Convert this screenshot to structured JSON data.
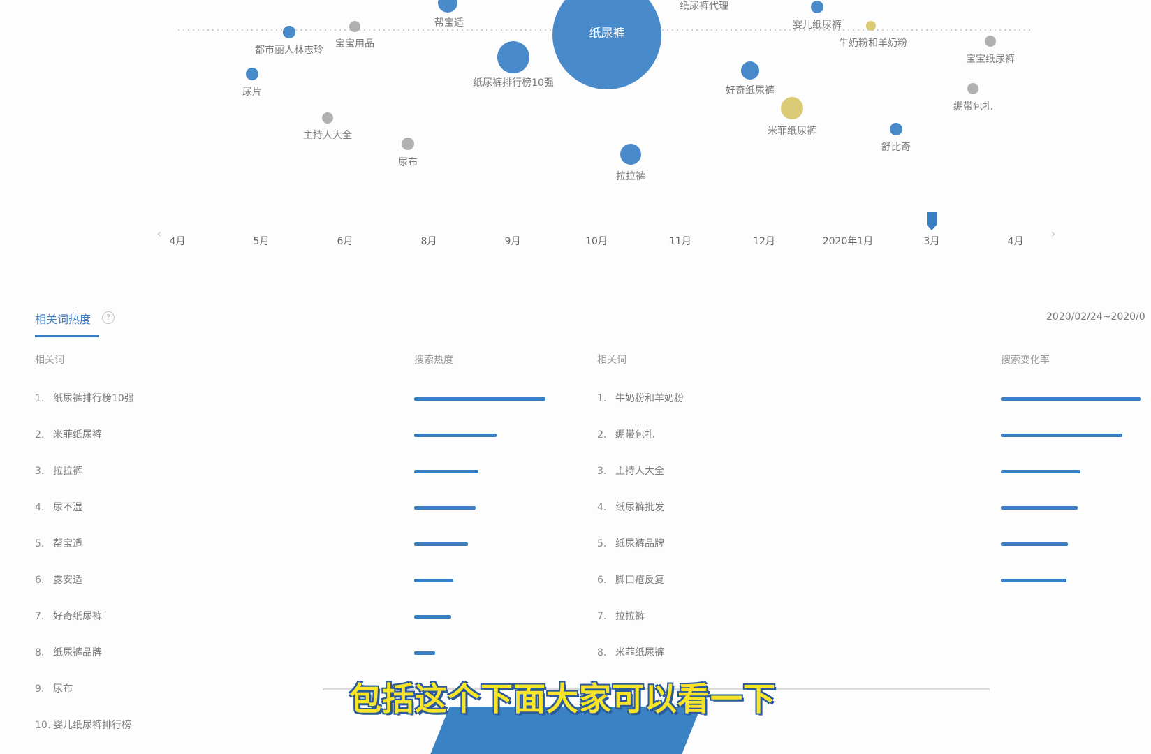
{
  "chart_data": {
    "type": "scatter",
    "x_ticks": [
      "4月",
      "5月",
      "6月",
      "8月",
      "9月",
      "10月",
      "11月",
      "12月",
      "2020年1月",
      "3月",
      "4月"
    ],
    "nav_left": "‹",
    "nav_right": "›",
    "bubbles": [
      {
        "label": "纸尿裤",
        "x_month": "10月",
        "size": "largest",
        "color": "#3a80c6"
      },
      {
        "label": "帮宝适",
        "x_month": "9月",
        "size": "small",
        "color": "#3a80c6"
      },
      {
        "label": "纸尿裤代理",
        "x_month": "11月",
        "size": "tiny",
        "color": "#3a80c6"
      },
      {
        "label": "婴儿纸尿裤",
        "x_month": "2020年1月",
        "size": "small",
        "color": "#3a80c6"
      },
      {
        "label": "牛奶粉和羊奶粉",
        "x_month": "2020年1月",
        "size": "tiny",
        "color": "#d8c56a"
      },
      {
        "label": "宝宝纸尿裤",
        "x_month": "4月",
        "size": "tiny",
        "color": "#aaaaaa"
      },
      {
        "label": "都市丽人林志玲",
        "x_month": "5月",
        "size": "small",
        "color": "#3a80c6"
      },
      {
        "label": "宝宝用品",
        "x_month": "6月",
        "size": "tiny",
        "color": "#aaaaaa"
      },
      {
        "label": "尿片",
        "x_month": "5月",
        "size": "small",
        "color": "#3a80c6"
      },
      {
        "label": "纸尿裤排行榜10强",
        "x_month": "9月",
        "size": "medium",
        "color": "#3a80c6"
      },
      {
        "label": "好奇纸尿裤",
        "x_month": "12月",
        "size": "small",
        "color": "#3a80c6"
      },
      {
        "label": "绷带包扎",
        "x_month": "3月",
        "size": "tiny",
        "color": "#aaaaaa"
      },
      {
        "label": "主持人大全",
        "x_month": "6月",
        "size": "tiny",
        "color": "#aaaaaa"
      },
      {
        "label": "米菲纸尿裤",
        "x_month": "12月",
        "size": "medium",
        "color": "#d8c56a"
      },
      {
        "label": "舒比奇",
        "x_month": "3月",
        "size": "small",
        "color": "#3a80c6"
      },
      {
        "label": "尿布",
        "x_month": "8月",
        "size": "tiny",
        "color": "#aaaaaa"
      },
      {
        "label": "拉拉裤",
        "x_month": "10月",
        "size": "small",
        "color": "#3a80c6"
      }
    ],
    "selected_month": "3月"
  },
  "section": {
    "title": "相关词热度",
    "help": "?",
    "date_range": "2020/02/24~2020/0"
  },
  "left_table": {
    "col_word": "相关词",
    "col_metric": "搜索热度",
    "rows": [
      {
        "num": "1.",
        "word": "纸尿裤排行榜10强",
        "level": 1.0
      },
      {
        "num": "2.",
        "word": "米菲纸尿裤",
        "level": 0.63
      },
      {
        "num": "3.",
        "word": "拉拉裤",
        "level": 0.49
      },
      {
        "num": "4.",
        "word": "尿不湿",
        "level": 0.47
      },
      {
        "num": "5.",
        "word": "帮宝适",
        "level": 0.41
      },
      {
        "num": "6.",
        "word": "露安适",
        "level": 0.3
      },
      {
        "num": "7.",
        "word": "好奇纸尿裤",
        "level": 0.28
      },
      {
        "num": "8.",
        "word": "纸尿裤品牌",
        "level": 0.16
      },
      {
        "num": "9.",
        "word": "尿布",
        "level": null
      },
      {
        "num": "10.",
        "word": "婴儿纸尿裤排行榜",
        "level": null
      }
    ]
  },
  "right_table": {
    "col_word": "相关词",
    "col_metric": "搜索变化率",
    "rows": [
      {
        "num": "1.",
        "word": "牛奶粉和羊奶粉",
        "level": 1.0
      },
      {
        "num": "2.",
        "word": "绷带包扎",
        "level": 0.87
      },
      {
        "num": "3.",
        "word": "主持人大全",
        "level": 0.57
      },
      {
        "num": "4.",
        "word": "纸尿裤批发",
        "level": 0.55
      },
      {
        "num": "5.",
        "word": "纸尿裤品牌",
        "level": 0.48
      },
      {
        "num": "6.",
        "word": "脚口疮反复",
        "level": 0.47
      },
      {
        "num": "7.",
        "word": "拉拉裤",
        "level": null
      },
      {
        "num": "8.",
        "word": "米菲纸尿裤",
        "level": null
      }
    ]
  },
  "subtitle": "包括这个下面大家可以看一下"
}
